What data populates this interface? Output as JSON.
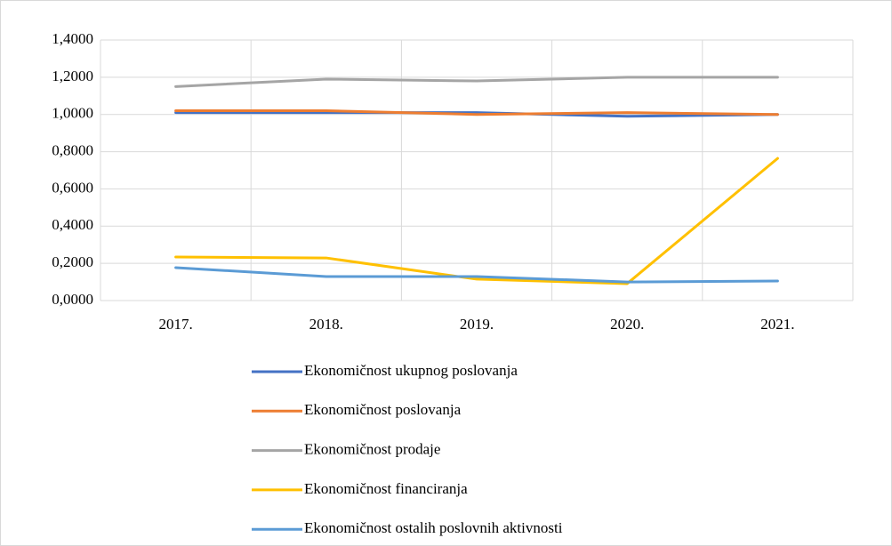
{
  "chart_data": {
    "type": "line",
    "categories": [
      "2017.",
      "2018.",
      "2019.",
      "2020.",
      "2021."
    ],
    "series": [
      {
        "name": "Ekonomičnost ukupnog poslovanja",
        "color": "#4472c4",
        "values": [
          1.01,
          1.01,
          1.01,
          0.99,
          1.0
        ]
      },
      {
        "name": "Ekonomičnost poslovanja",
        "color": "#ed7d31",
        "values": [
          1.02,
          1.02,
          1.0,
          1.01,
          1.0
        ]
      },
      {
        "name": "Ekonomičnost prodaje",
        "color": "#a5a5a5",
        "values": [
          1.15,
          1.19,
          1.18,
          1.2,
          1.2
        ]
      },
      {
        "name": "Ekonomičnost financiranja",
        "color": "#ffc000",
        "values": [
          0.234,
          0.229,
          0.115,
          0.091,
          0.764
        ]
      },
      {
        "name": "Ekonomičnost ostalih poslovnih aktivnosti",
        "color": "#5b9bd5",
        "values": [
          0.177,
          0.129,
          0.129,
          0.1,
          0.105
        ]
      }
    ],
    "ylim": [
      0,
      1.4
    ],
    "yticks": [
      {
        "value": 0,
        "label": "0,0000"
      },
      {
        "value": 0.2,
        "label": "0,2000"
      },
      {
        "value": 0.4,
        "label": "0,4000"
      },
      {
        "value": 0.6,
        "label": "0,6000"
      },
      {
        "value": 0.8,
        "label": "0,8000"
      },
      {
        "value": 1.0,
        "label": "1,0000"
      },
      {
        "value": 1.2,
        "label": "1,2000"
      },
      {
        "value": 1.4,
        "label": "1,4000"
      }
    ],
    "grid": true,
    "legend": "bottom"
  }
}
